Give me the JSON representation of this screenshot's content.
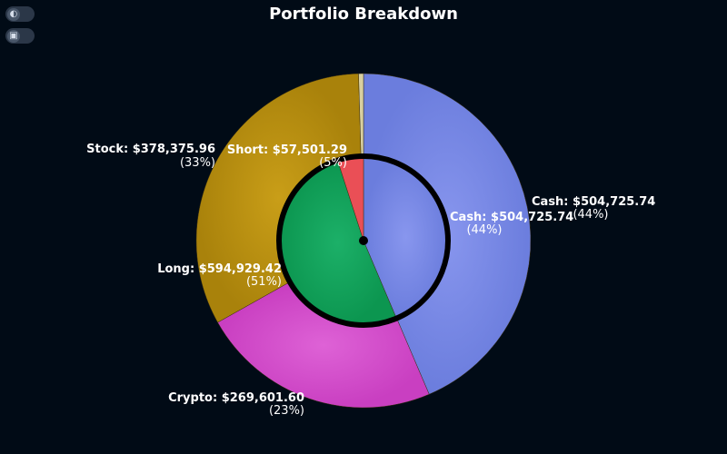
{
  "title": "Portfolio Breakdown",
  "controls": {
    "theme_icon": "contrast-icon",
    "view_icon": "toggle-view-icon"
  },
  "colors": {
    "background": "#010b16",
    "cash": "#7789e6",
    "stock": "#b8900f",
    "crypto": "#d54ccc",
    "thin": "#d8cfa0",
    "long": "#12a35a",
    "short": "#ea4f56",
    "inner_cash": "#7789e6",
    "separator": "#000000"
  },
  "chart_data": [
    {
      "type": "pie",
      "ring": "outer",
      "slices": [
        {
          "key": "cash",
          "label": "Cash: $504,725.74",
          "value": 504725.74,
          "pct": "(44%)"
        },
        {
          "key": "crypto",
          "label": "Crypto: $269,601.60",
          "value": 269601.6,
          "pct": "(23%)"
        },
        {
          "key": "stock",
          "label": "Stock: $378,375.96",
          "value": 378375.96,
          "pct": "(33%)"
        },
        {
          "key": "thin",
          "label": "",
          "value": 5500,
          "pct": ""
        }
      ]
    },
    {
      "type": "pie",
      "ring": "inner",
      "slices": [
        {
          "key": "inner_cash",
          "label": "Cash: $504,725.74",
          "value": 504725.74,
          "pct": "(44%)"
        },
        {
          "key": "long",
          "label": "Long: $594,929.42",
          "value": 594929.42,
          "pct": "(51%)"
        },
        {
          "key": "short",
          "label": "Short: $57,501.29",
          "value": 57501.29,
          "pct": "(5%)"
        }
      ]
    }
  ]
}
